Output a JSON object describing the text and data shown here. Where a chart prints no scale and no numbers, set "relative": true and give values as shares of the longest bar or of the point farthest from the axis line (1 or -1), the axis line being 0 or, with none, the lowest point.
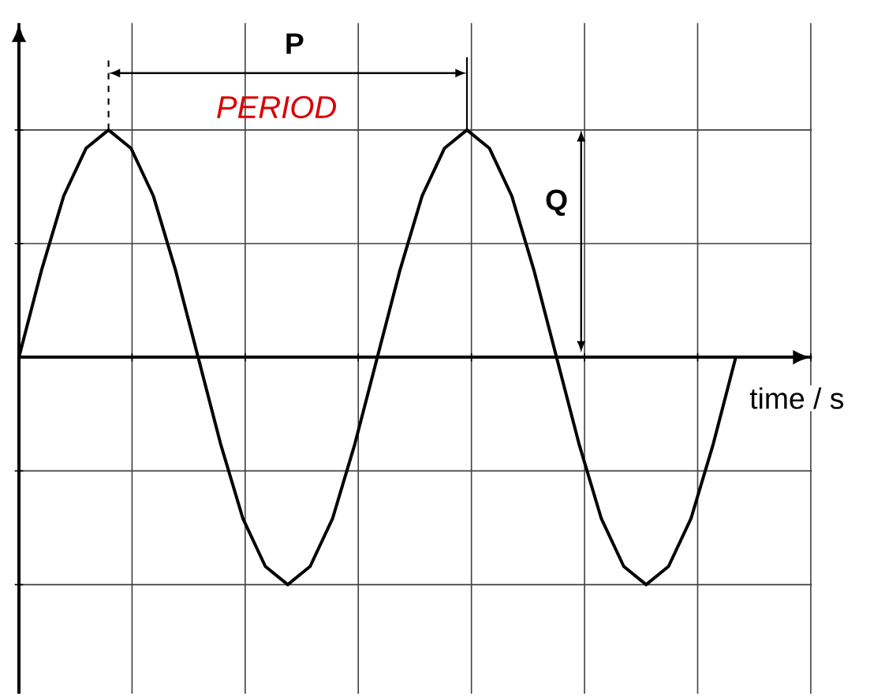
{
  "chart_data": {
    "type": "line",
    "relative": true,
    "grid": true,
    "xlabel": "time / s",
    "categories": [
      null,
      null,
      null,
      null,
      null,
      null,
      null,
      null,
      null,
      null,
      null,
      null,
      null,
      null,
      null,
      null,
      null,
      null,
      null,
      null,
      null,
      null,
      null,
      null,
      null,
      null,
      null,
      null,
      null,
      null,
      null,
      null,
      null,
      null,
      null,
      null
    ],
    "series": [
      {
        "color": "#000000",
        "values": [
          0,
          0.38,
          0.71,
          0.92,
          1,
          0.92,
          0.71,
          0.38,
          0,
          -0.38,
          -0.71,
          -0.92,
          -1,
          -0.92,
          -0.71,
          -0.38,
          0,
          0.38,
          0.71,
          0.92,
          1,
          0.92,
          0.71,
          0.38,
          0,
          -0.38,
          -0.71,
          -0.92,
          -1,
          -0.92,
          -0.71,
          -0.38,
          0,
          null,
          null,
          null
        ]
      }
    ],
    "annotations": [
      "P",
      "PERIOD",
      "Q"
    ]
  }
}
